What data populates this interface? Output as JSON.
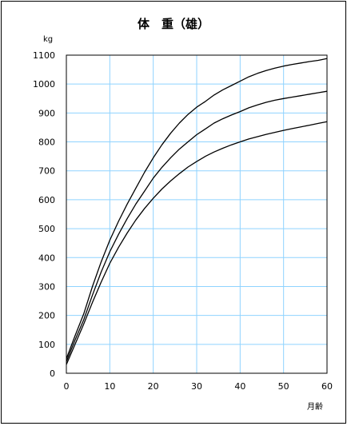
{
  "chart_data": {
    "type": "line",
    "title": "体　重（雄）",
    "ylabel": "kg",
    "xlabel": "月齢",
    "xlim": [
      0,
      60
    ],
    "ylim": [
      0,
      1100
    ],
    "x_ticks": [
      "0",
      "10",
      "20",
      "30",
      "40",
      "50",
      "60"
    ],
    "y_ticks": [
      "0",
      "100",
      "200",
      "300",
      "400",
      "500",
      "600",
      "700",
      "800",
      "900",
      "1000",
      "1100"
    ],
    "grid": true,
    "legend": "none",
    "colors": {
      "grid": "#8fd3ff",
      "line": "#000000",
      "frame": "#000000"
    },
    "x": [
      0,
      2,
      4,
      6,
      8,
      10,
      12,
      14,
      16,
      18,
      20,
      22,
      24,
      26,
      28,
      30,
      32,
      34,
      36,
      38,
      40,
      42,
      44,
      46,
      48,
      50,
      52,
      54,
      56,
      58,
      60
    ],
    "series": [
      {
        "values": [
          50,
          130,
          205,
          300,
          385,
          460,
          525,
          585,
          640,
          695,
          745,
          790,
          830,
          865,
          895,
          920,
          940,
          962,
          980,
          995,
          1010,
          1025,
          1037,
          1047,
          1055,
          1062,
          1068,
          1073,
          1078,
          1082,
          1088
        ]
      },
      {
        "values": [
          40,
          115,
          185,
          270,
          350,
          420,
          480,
          535,
          585,
          630,
          675,
          712,
          745,
          775,
          800,
          825,
          845,
          865,
          880,
          893,
          905,
          918,
          928,
          937,
          944,
          950,
          955,
          960,
          965,
          970,
          975
        ]
      },
      {
        "values": [
          30,
          100,
          170,
          245,
          315,
          380,
          435,
          485,
          530,
          570,
          605,
          637,
          665,
          690,
          713,
          732,
          750,
          765,
          778,
          790,
          800,
          810,
          818,
          826,
          833,
          840,
          846,
          852,
          858,
          864,
          870
        ]
      }
    ]
  }
}
